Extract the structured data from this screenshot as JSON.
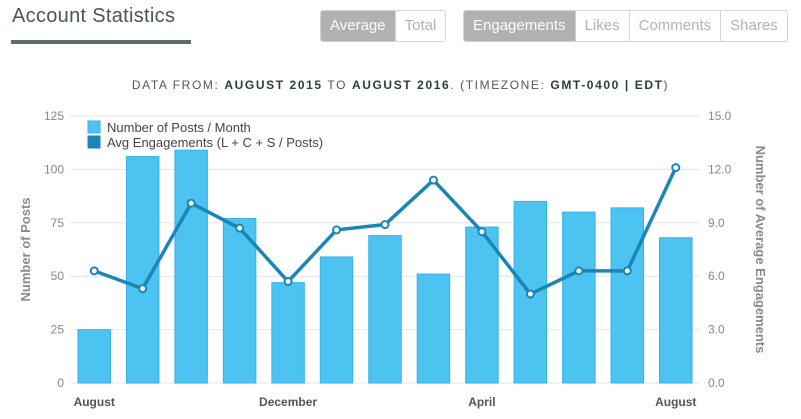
{
  "header": {
    "title": "Account Statistics",
    "mode_buttons": [
      {
        "label": "Average",
        "active": true
      },
      {
        "label": "Total",
        "active": false
      }
    ],
    "metric_buttons": [
      {
        "label": "Engagements",
        "active": true
      },
      {
        "label": "Likes",
        "active": false
      },
      {
        "label": "Comments",
        "active": false
      },
      {
        "label": "Shares",
        "active": false
      }
    ]
  },
  "subtitle": {
    "prefix": "DATA FROM: ",
    "from": "AUGUST 2015",
    "to_word": " TO ",
    "to": "AUGUST 2016",
    "tz_prefix": ". (TIMEZONE: ",
    "tz": "GMT-0400 | EDT",
    "tz_suffix": ")"
  },
  "colors": {
    "bar": "#4cc3f0",
    "bar_stroke": "#36b2e3",
    "line": "#1a86b8",
    "grid": "#e6e6e6"
  },
  "chart_data": {
    "type": "bar+line",
    "x_tick_labels": [
      {
        "index": 0,
        "label": "August"
      },
      {
        "index": 4,
        "label": "December"
      },
      {
        "index": 8,
        "label": "April"
      },
      {
        "index": 12,
        "label": "August"
      }
    ],
    "y_left": {
      "label": "Number of Posts",
      "range": [
        0,
        125
      ],
      "ticks": [
        "0",
        "25",
        "50",
        "75",
        "100",
        "125"
      ]
    },
    "y_right": {
      "label": "Number of Average Engagements",
      "range": [
        0,
        15
      ],
      "ticks": [
        "0.0",
        "3.0",
        "6.0",
        "9.0",
        "12.0",
        "15.0"
      ]
    },
    "grid": true,
    "legend_position": "top-left",
    "series": [
      {
        "name": "Number of Posts / Month",
        "type": "bar",
        "axis": "left",
        "values": [
          25,
          106,
          109,
          77,
          47,
          59,
          69,
          51,
          73,
          85,
          80,
          82,
          68
        ]
      },
      {
        "name": "Avg Engagements (L + C + S / Posts)",
        "type": "line",
        "axis": "right",
        "values": [
          6.3,
          5.3,
          10.1,
          8.7,
          5.7,
          8.6,
          8.9,
          11.4,
          8.5,
          5.0,
          6.3,
          6.3,
          12.1
        ]
      }
    ]
  }
}
